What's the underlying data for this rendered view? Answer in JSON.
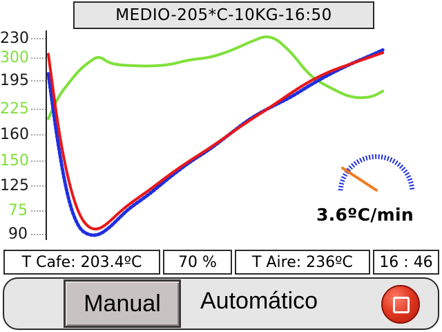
{
  "header": {
    "title": "MEDIO-205*C-10KG-16:50"
  },
  "axis": {
    "temp_ticks": [
      "230",
      "195",
      "160",
      "125",
      "90"
    ],
    "air_ticks": [
      "300",
      "225",
      "150",
      "75"
    ],
    "temp_color": "#1a1a1a",
    "air_color": "#7fe03a"
  },
  "gauge": {
    "rate_text": "3.6ºC/min",
    "arc_color": "#1f2fe0",
    "needle_color": "#f07a22"
  },
  "status": {
    "coffee_temp": "T Cafe: 203.4ºC",
    "power": "70 %",
    "air_temp": "T Aire: 236ºC",
    "time": "16 : 46"
  },
  "controls": {
    "manual_label": "Manual",
    "auto_label": "Automático",
    "stop_icon": "stop-icon"
  },
  "chart_data": {
    "type": "line",
    "x_range": [
      0,
      16.8
    ],
    "y_range": [
      90,
      230
    ],
    "y2_range": [
      20,
      320
    ],
    "x": [
      0,
      0.5,
      1,
      1.5,
      2,
      2.5,
      3,
      3.5,
      4,
      5,
      6,
      7,
      8,
      9,
      10,
      11,
      12,
      13,
      14,
      15,
      16,
      16.6
    ],
    "series": [
      {
        "color": "#e81818",
        "axis": "left",
        "values": [
          219,
          165,
          128,
          105,
          95,
          94,
          99,
          106,
          112,
          122,
          133,
          143,
          152,
          162,
          172,
          181,
          191,
          200,
          207,
          212,
          217,
          220
        ]
      },
      {
        "color": "#1f2fe0",
        "axis": "left",
        "values": [
          205,
          152,
          114,
          95,
          90,
          90,
          95,
          102,
          109,
          119,
          131,
          142,
          151,
          162,
          173,
          181,
          188,
          197,
          205,
          212,
          218,
          222
        ]
      },
      {
        "color": "#7fe03a",
        "axis": "right",
        "values": [
          198,
          232,
          252,
          271,
          284,
          294,
          283,
          280,
          279,
          278,
          280,
          288,
          291,
          301,
          315,
          327,
          302,
          262,
          245,
          230,
          230,
          240
        ]
      }
    ]
  }
}
